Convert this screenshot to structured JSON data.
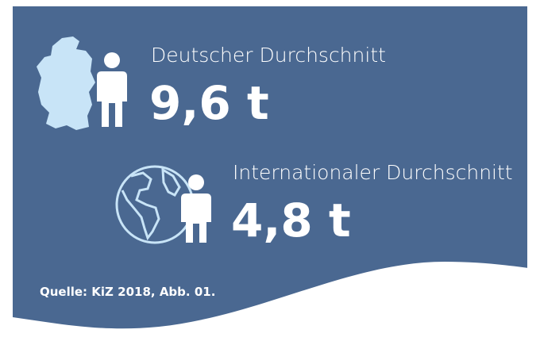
{
  "items": [
    {
      "label": "Deutscher Durchschnitt",
      "value": "9,6 t"
    },
    {
      "label": "Internationaler Durchschnitt",
      "value": "4,8 t"
    }
  ],
  "source": "Quelle: KiZ 2018, Abb. 01."
}
